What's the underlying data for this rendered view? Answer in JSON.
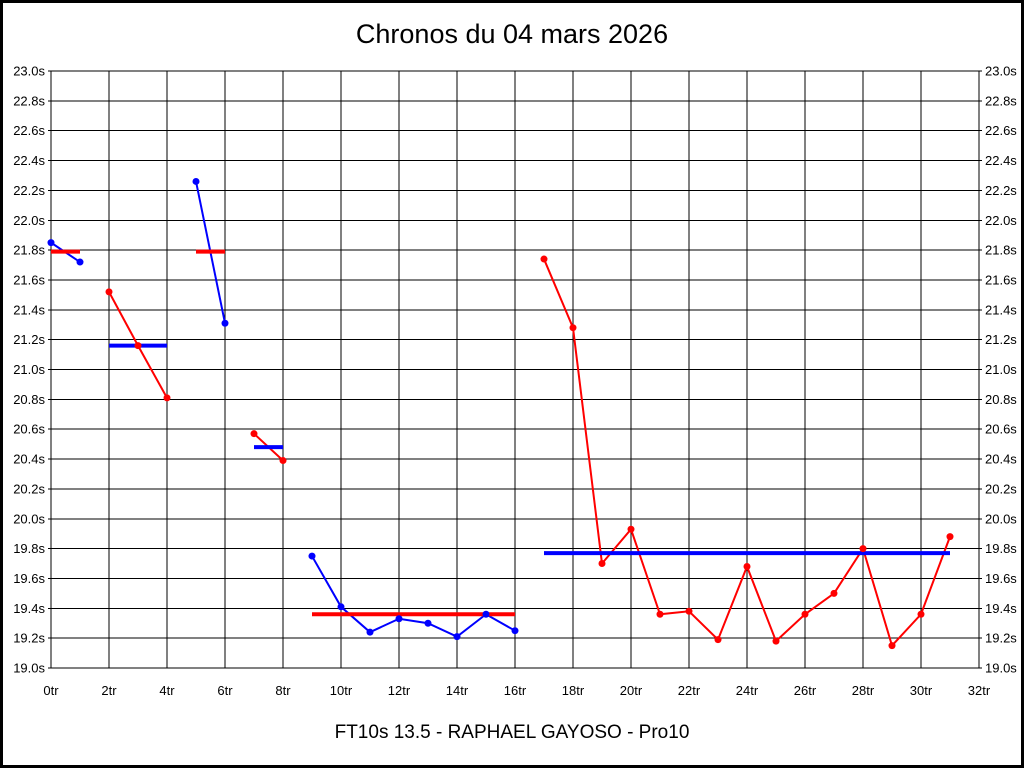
{
  "chart_data": {
    "type": "line",
    "title": "Chronos du 04 mars 2026",
    "footer": "FT10s 13.5 - RAPHAEL GAYOSO - Pro10",
    "xlabel": "tr",
    "ylabel": "s",
    "xlim": [
      0,
      32
    ],
    "ylim": [
      19.0,
      23.0
    ],
    "x_tick_step": 2,
    "y_tick_step": 0.2,
    "grid": true,
    "legend": "none",
    "x_tick_labels": [
      "0tr",
      "2tr",
      "4tr",
      "6tr",
      "8tr",
      "10tr",
      "12tr",
      "14tr",
      "16tr",
      "18tr",
      "20tr",
      "22tr",
      "24tr",
      "26tr",
      "28tr",
      "30tr",
      "32tr"
    ],
    "y_tick_labels": [
      "23.0s",
      "22.8s",
      "22.6s",
      "22.4s",
      "22.2s",
      "22.0s",
      "21.8s",
      "21.6s",
      "21.4s",
      "21.2s",
      "21.0s",
      "20.8s",
      "20.6s",
      "20.4s",
      "20.2s",
      "20.0s",
      "19.8s",
      "19.6s",
      "19.4s",
      "19.2s",
      "19.0s"
    ],
    "colors": {
      "red": "#ff0000",
      "blue": "#0000ff"
    },
    "runs": [
      {
        "name": "run-1",
        "color": "blue",
        "avg_color": "red",
        "start_lap": 0,
        "values": [
          21.85,
          21.72
        ],
        "avg": 21.79
      },
      {
        "name": "run-2",
        "color": "red",
        "avg_color": "blue",
        "start_lap": 2,
        "values": [
          21.52,
          21.16,
          20.81
        ],
        "avg": 21.16
      },
      {
        "name": "run-3",
        "color": "blue",
        "avg_color": "red",
        "start_lap": 5,
        "values": [
          22.26,
          21.31
        ],
        "avg": 21.79
      },
      {
        "name": "run-4",
        "color": "red",
        "avg_color": "blue",
        "start_lap": 7,
        "values": [
          20.57,
          20.39
        ],
        "avg": 20.48
      },
      {
        "name": "run-5",
        "color": "blue",
        "avg_color": "red",
        "start_lap": 9,
        "values": [
          19.75,
          19.41,
          19.24,
          19.33,
          19.3,
          19.21,
          19.36,
          19.25
        ],
        "avg": 19.36
      },
      {
        "name": "run-6",
        "color": "red",
        "avg_color": "blue",
        "start_lap": 17,
        "values": [
          21.74,
          21.28,
          19.7,
          19.93,
          19.36,
          19.38,
          19.19,
          19.68,
          19.18,
          19.36,
          19.5,
          19.8,
          19.15,
          19.36,
          19.88
        ],
        "avg": 19.77
      }
    ]
  }
}
